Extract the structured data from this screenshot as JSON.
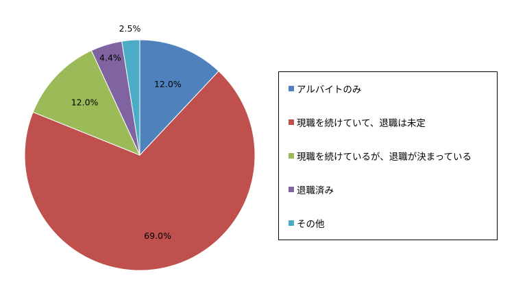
{
  "chart_data": {
    "type": "pie",
    "title": "",
    "categories": [
      "アルバイトのみ",
      "現職を続けていて、退職は未定",
      "現職を続けているが、退職が決まっている",
      "退職済み",
      "その他"
    ],
    "values": [
      12.0,
      69.0,
      12.0,
      4.4,
      2.5
    ],
    "value_labels": [
      "12.0%",
      "69.0%",
      "12.0%",
      "4.4%",
      "2.5%"
    ],
    "colors": [
      "#4F81BD",
      "#C0504D",
      "#9BBB59",
      "#8064A2",
      "#4BACC6"
    ],
    "start_angle": "12 o'clock",
    "direction": "clockwise",
    "legend_position": "right"
  }
}
